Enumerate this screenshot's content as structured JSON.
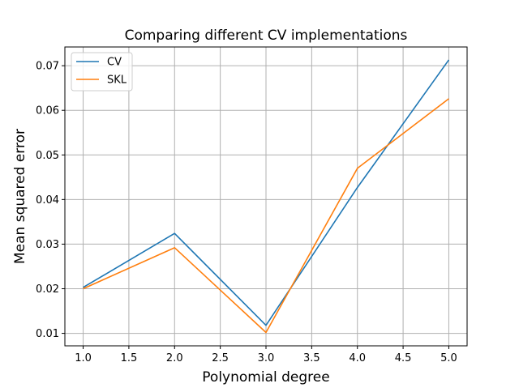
{
  "chart_data": {
    "type": "line",
    "title": "Comparing different CV implementations",
    "xlabel": "Polynomial degree",
    "ylabel": "Mean squared error",
    "x": [
      1.0,
      2.0,
      3.0,
      4.0,
      5.0
    ],
    "series": [
      {
        "name": "CV",
        "color": "#1f77b4",
        "values": [
          0.0203,
          0.0324,
          0.0118,
          0.0427,
          0.0713
        ]
      },
      {
        "name": "SKL",
        "color": "#ff7f0e",
        "values": [
          0.02,
          0.0292,
          0.0102,
          0.047,
          0.0626
        ]
      }
    ],
    "xlim": [
      0.8,
      5.2
    ],
    "ylim": [
      0.0072,
      0.0742
    ],
    "xticks": [
      "1.0",
      "1.5",
      "2.0",
      "2.5",
      "3.0",
      "3.5",
      "4.0",
      "4.5",
      "5.0"
    ],
    "yticks": [
      "0.01",
      "0.02",
      "0.03",
      "0.04",
      "0.05",
      "0.06",
      "0.07"
    ],
    "grid": true,
    "legend_position": "upper-left"
  }
}
